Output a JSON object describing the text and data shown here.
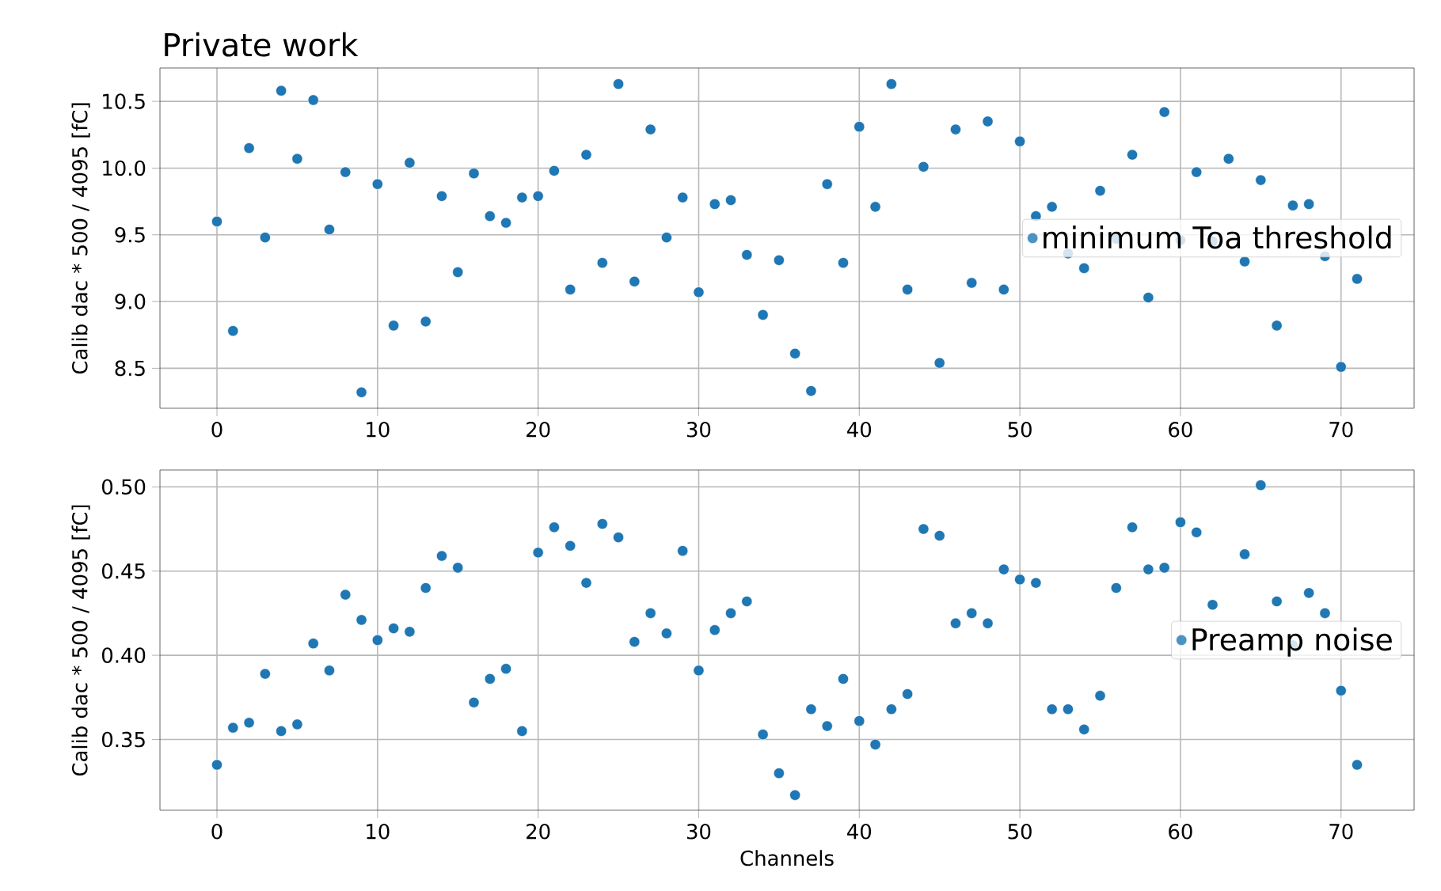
{
  "chart_data": [
    {
      "type": "scatter",
      "title": "Private work",
      "ylabel": "Calib dac * 500 / 4095 [fC]",
      "x": [
        0,
        1,
        2,
        3,
        4,
        5,
        6,
        7,
        8,
        9,
        10,
        11,
        12,
        13,
        14,
        15,
        16,
        17,
        18,
        19,
        20,
        21,
        22,
        23,
        24,
        25,
        26,
        27,
        28,
        29,
        30,
        31,
        32,
        33,
        34,
        35,
        36,
        37,
        38,
        39,
        40,
        41,
        42,
        43,
        44,
        45,
        46,
        47,
        48,
        49,
        50,
        51,
        52,
        53,
        54,
        55,
        56,
        57,
        58,
        59,
        60,
        61,
        62,
        63,
        64,
        65,
        66,
        67,
        68,
        69,
        70,
        71
      ],
      "series": [
        {
          "name": "minimum Toa threshold",
          "color": "#1f77b4",
          "values": [
            9.6,
            8.78,
            10.15,
            9.48,
            10.58,
            10.07,
            10.51,
            9.54,
            9.97,
            8.32,
            9.88,
            8.82,
            10.04,
            8.85,
            9.79,
            9.22,
            9.96,
            9.64,
            9.59,
            9.78,
            9.79,
            9.98,
            9.09,
            10.1,
            9.29,
            10.63,
            9.15,
            10.29,
            9.48,
            9.78,
            9.07,
            9.73,
            9.76,
            9.35,
            8.9,
            9.31,
            8.61,
            8.33,
            9.88,
            9.29,
            10.31,
            9.71,
            10.63,
            9.09,
            10.01,
            8.54,
            10.29,
            9.14,
            10.35,
            9.09,
            10.2,
            9.64,
            9.71,
            9.36,
            9.25,
            9.83,
            9.47,
            10.1,
            9.03,
            10.42,
            9.46,
            9.97,
            9.45,
            10.07,
            9.3,
            9.91,
            8.82,
            9.72,
            9.73,
            9.34,
            8.51,
            9.17
          ]
        }
      ],
      "xlim": [
        -3.55,
        74.55
      ],
      "ylim": [
        8.2,
        10.75
      ],
      "xticks": [
        0,
        10,
        20,
        30,
        40,
        50,
        60,
        70
      ],
      "yticks": [
        8.5,
        {
          "value": 9.0,
          "label": "9.0"
        },
        9.5,
        {
          "value": 10.0,
          "label": "10.0"
        },
        10.5
      ],
      "grid": true,
      "legend": "right",
      "marker": "circle"
    },
    {
      "type": "scatter",
      "xlabel": "Channels",
      "ylabel": "Calib dac * 500 / 4095 [fC]",
      "x": [
        0,
        1,
        2,
        3,
        4,
        5,
        6,
        7,
        8,
        9,
        10,
        11,
        12,
        13,
        14,
        15,
        16,
        17,
        18,
        19,
        20,
        21,
        22,
        23,
        24,
        25,
        26,
        27,
        28,
        29,
        30,
        31,
        32,
        33,
        34,
        35,
        36,
        37,
        38,
        39,
        40,
        41,
        42,
        43,
        44,
        45,
        46,
        47,
        48,
        49,
        50,
        51,
        52,
        53,
        54,
        55,
        56,
        57,
        58,
        59,
        60,
        61,
        62,
        63,
        64,
        65,
        66,
        67,
        68,
        69,
        70,
        71
      ],
      "series": [
        {
          "name": "Preamp noise",
          "color": "#1f77b4",
          "values": [
            0.335,
            0.357,
            0.36,
            0.389,
            0.355,
            0.359,
            0.407,
            0.391,
            0.436,
            0.421,
            0.409,
            0.416,
            0.414,
            0.44,
            0.459,
            0.452,
            0.372,
            0.386,
            0.392,
            0.355,
            0.461,
            0.476,
            0.465,
            0.443,
            0.478,
            0.47,
            0.408,
            0.425,
            0.413,
            0.462,
            0.391,
            0.415,
            0.425,
            0.432,
            0.353,
            0.33,
            0.317,
            0.368,
            0.358,
            0.386,
            0.361,
            0.347,
            0.368,
            0.377,
            0.475,
            0.471,
            0.419,
            0.425,
            0.419,
            0.451,
            0.445,
            0.443,
            0.368,
            0.368,
            0.356,
            0.376,
            0.44,
            0.476,
            0.451,
            0.452,
            0.479,
            0.473,
            0.43,
            null,
            0.46,
            0.501,
            0.432,
            0.406,
            0.437,
            0.425,
            0.379,
            0.335
          ]
        }
      ],
      "xlim": [
        -3.55,
        74.55
      ],
      "ylim": [
        0.308,
        0.51
      ],
      "xticks": [
        0,
        10,
        20,
        30,
        40,
        50,
        60,
        70
      ],
      "yticks": [
        0.35,
        {
          "value": 0.4,
          "label": "0.40"
        },
        0.45,
        {
          "value": 0.5,
          "label": "0.50"
        }
      ],
      "grid": true,
      "legend": "right",
      "marker": "circle"
    }
  ]
}
